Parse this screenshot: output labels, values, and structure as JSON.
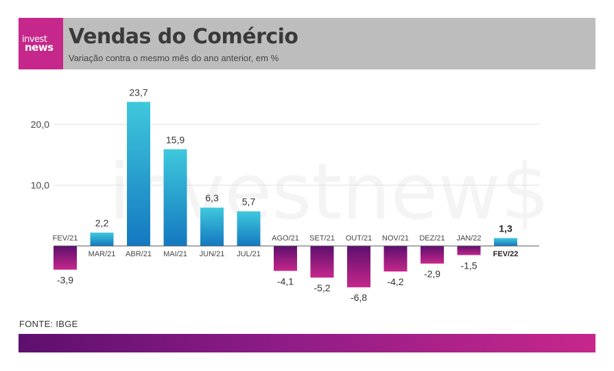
{
  "header": {
    "logo_line1": "invest",
    "logo_line2": "news",
    "title": "Vendas do Comércio",
    "subtitle": "Variação contra o mesmo mês do ano anterior, em %"
  },
  "watermark": "investnew$",
  "source": "FONTE: IBGE",
  "colors": {
    "positive_top": "#3fc8dc",
    "positive_bottom": "#1478c0",
    "negative_top": "#5c0f6e",
    "negative_bottom": "#c6278b",
    "logo": "#c6278b",
    "header_bg": "#bdbdbd"
  },
  "chart_data": {
    "type": "bar",
    "title": "Vendas do Comércio",
    "subtitle": "Variação contra o mesmo mês do ano anterior, em %",
    "categories": [
      "FEV/21",
      "MAR/21",
      "ABR/21",
      "MAI/21",
      "JUN/21",
      "JUL/21",
      "AGO/21",
      "SET/21",
      "OUT/21",
      "NOV/21",
      "DEZ/21",
      "JAN/22",
      "FEV/22"
    ],
    "values": [
      -3.9,
      2.2,
      23.7,
      15.9,
      6.3,
      5.7,
      -4.1,
      -5.2,
      -6.8,
      -4.2,
      -2.9,
      -1.5,
      1.3
    ],
    "value_labels": [
      "-3,9",
      "2,2",
      "23,7",
      "15,9",
      "6,3",
      "5,7",
      "-4,1",
      "-5,2",
      "-6,8",
      "-4,2",
      "-2,9",
      "-1,5",
      "1,3"
    ],
    "highlight_index": 12,
    "yticks": [
      10,
      20
    ],
    "ytick_labels": [
      "10,0",
      "20,0"
    ],
    "ylim": [
      -7,
      24
    ],
    "grid": true,
    "legend": "none"
  }
}
